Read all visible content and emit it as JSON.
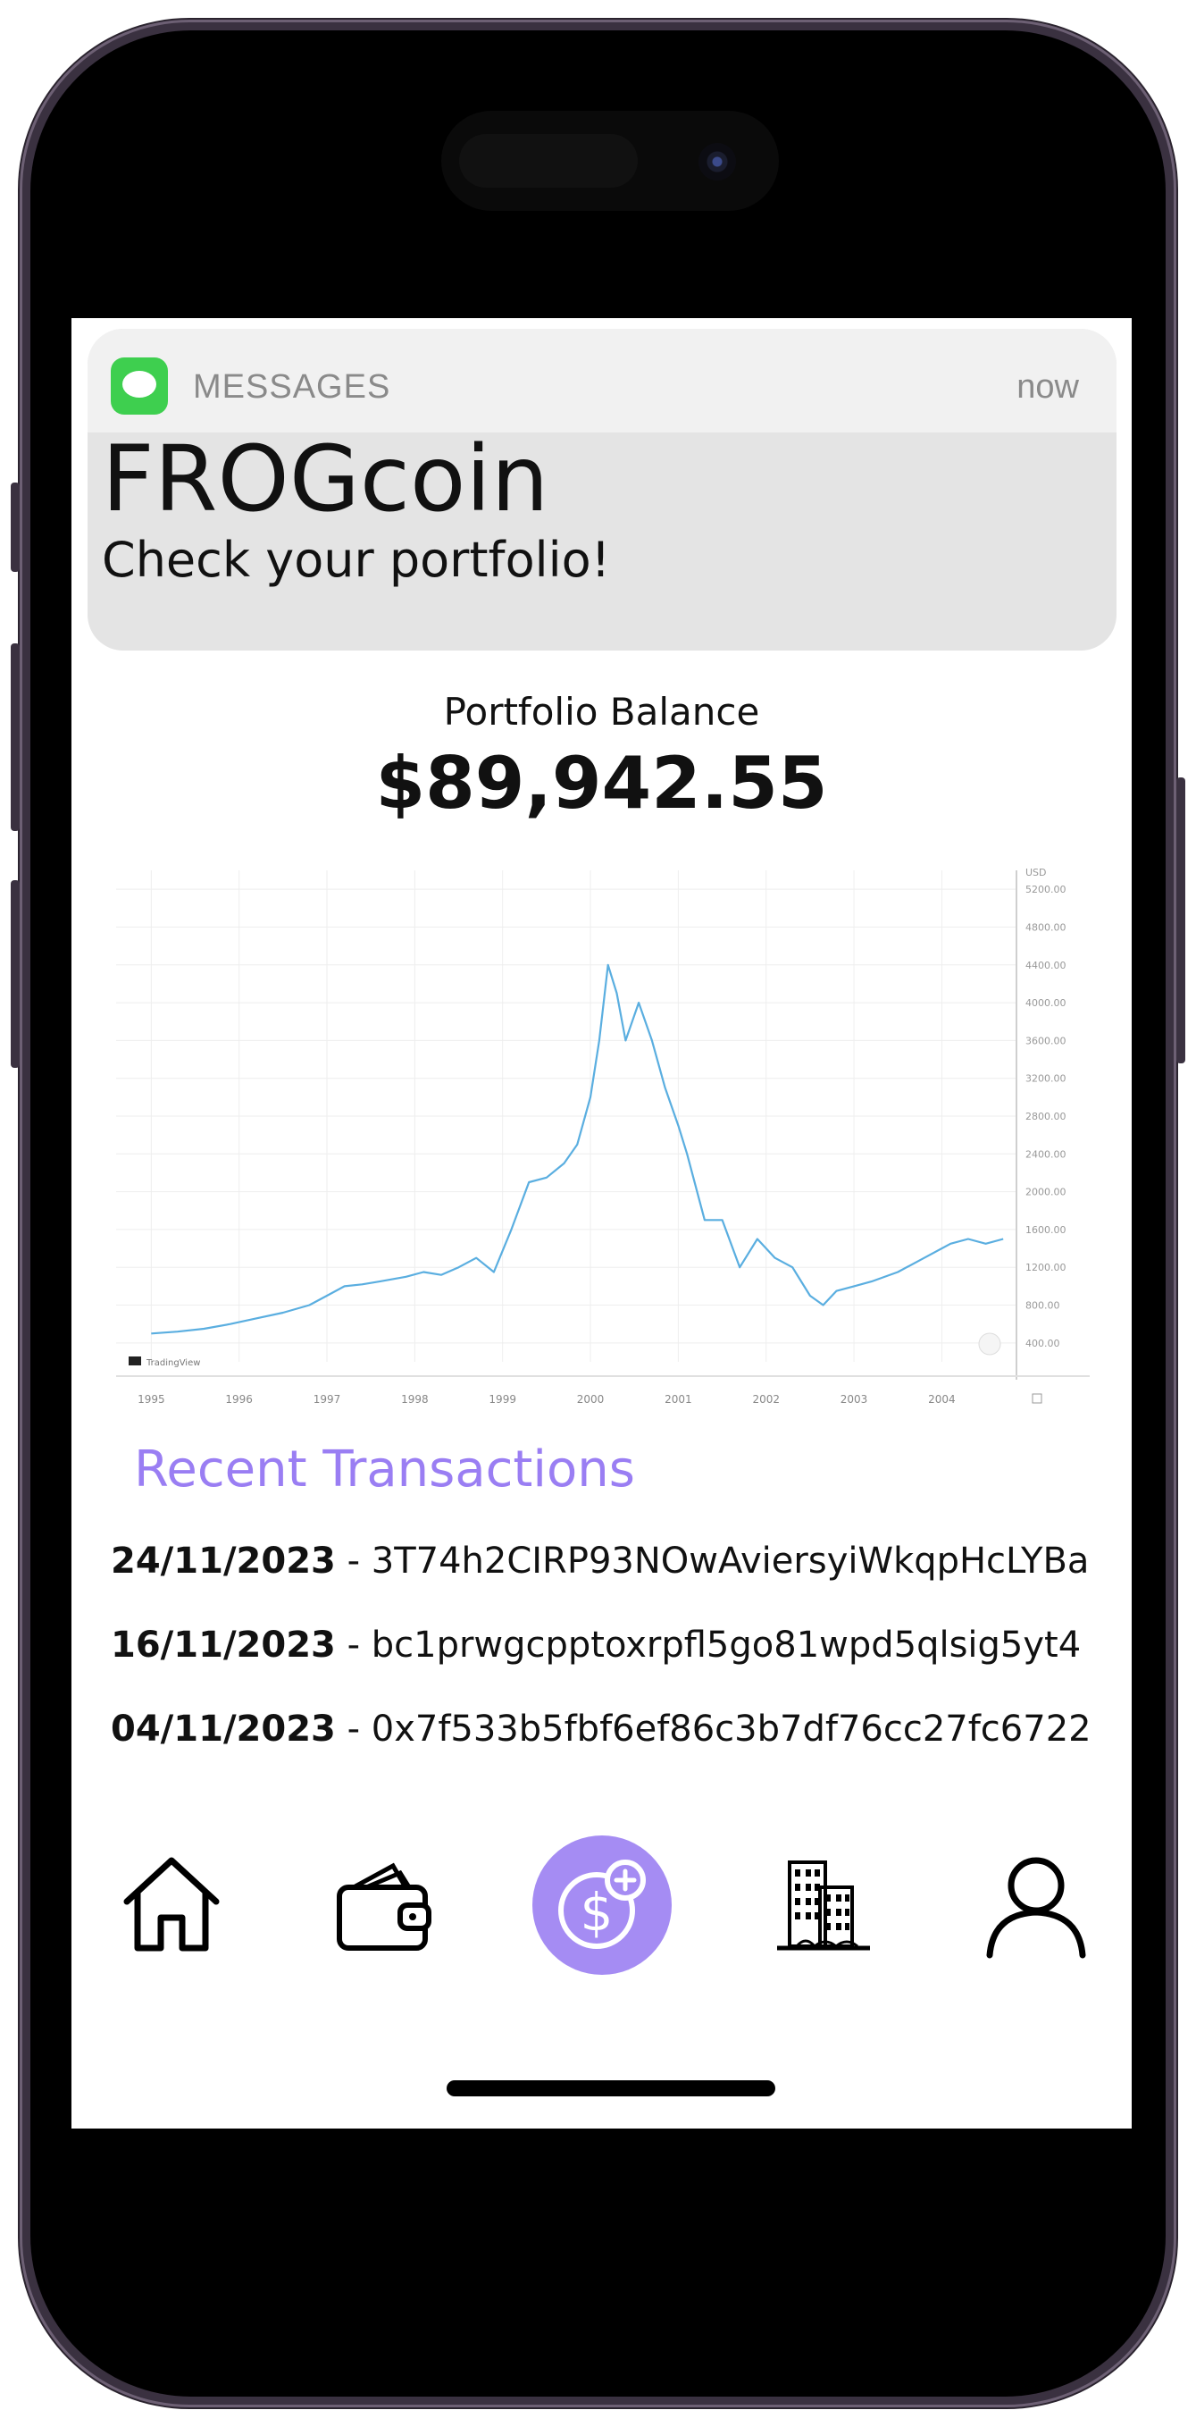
{
  "notification": {
    "app_name": "MESSAGES",
    "time": "now",
    "title": "FROGcoin",
    "body": "Check your portfolio!"
  },
  "portfolio": {
    "label": "Portfolio Balance",
    "balance": "$89,942.55"
  },
  "chart_data": {
    "type": "line",
    "title": "",
    "xlabel": "",
    "ylabel": "",
    "currency_label": "USD",
    "watermark": "TradingView",
    "x_ticks": [
      "1995",
      "1996",
      "1997",
      "1998",
      "1999",
      "2000",
      "2001",
      "2002",
      "2003",
      "2004"
    ],
    "y_ticks": [
      "400.00",
      "800.00",
      "1200.00",
      "1600.00",
      "2000.00",
      "2400.00",
      "2800.00",
      "3200.00",
      "3600.00",
      "4000.00",
      "4400.00",
      "4800.00",
      "5200.00"
    ],
    "ylim": [
      200,
      5400
    ],
    "xlim": [
      1994.6,
      2004.85
    ],
    "grid": true,
    "series": [
      {
        "color": "#5aaee0",
        "x": [
          1995.0,
          1995.3,
          1995.6,
          1995.9,
          1996.2,
          1996.5,
          1996.8,
          1997.0,
          1997.2,
          1997.4,
          1997.6,
          1997.9,
          1998.1,
          1998.3,
          1998.5,
          1998.7,
          1998.9,
          1999.1,
          1999.3,
          1999.5,
          1999.7,
          1999.85,
          2000.0,
          2000.1,
          2000.2,
          2000.3,
          2000.4,
          2000.55,
          2000.7,
          2000.85,
          2001.0,
          2001.1,
          2001.3,
          2001.5,
          2001.7,
          2001.9,
          2002.1,
          2002.3,
          2002.5,
          2002.65,
          2002.8,
          2003.0,
          2003.2,
          2003.5,
          2003.8,
          2004.1,
          2004.3,
          2004.5,
          2004.7
        ],
        "y": [
          500,
          520,
          550,
          600,
          660,
          720,
          800,
          900,
          1000,
          1020,
          1050,
          1100,
          1150,
          1120,
          1200,
          1300,
          1150,
          1600,
          2100,
          2150,
          2300,
          2500,
          3000,
          3600,
          4400,
          4100,
          3600,
          4000,
          3600,
          3100,
          2700,
          2400,
          1700,
          1700,
          1200,
          1500,
          1300,
          1200,
          900,
          800,
          950,
          1000,
          1050,
          1150,
          1300,
          1450,
          1500,
          1450,
          1500
        ]
      }
    ]
  },
  "transactions": {
    "title": "Recent Transactions",
    "items": [
      {
        "date": "24/11/2023",
        "sep": " - ",
        "hash": "3T74h2CIRP93NOwAviersyiWkqpHcLYBa"
      },
      {
        "date": "16/11/2023",
        "sep": " - ",
        "hash": "bc1prwgcpptoxrpfl5go81wpd5qlsig5yt4"
      },
      {
        "date": "04/11/2023",
        "sep": " - ",
        "hash": "0x7f533b5fbf6ef86c3b7df76cc27fc6722"
      }
    ]
  },
  "nav": {
    "items": [
      {
        "icon": "home-icon"
      },
      {
        "icon": "wallet-icon"
      },
      {
        "icon": "add-money-icon",
        "accent": "#a58cf3"
      },
      {
        "icon": "buildings-icon"
      },
      {
        "icon": "profile-icon"
      }
    ]
  }
}
